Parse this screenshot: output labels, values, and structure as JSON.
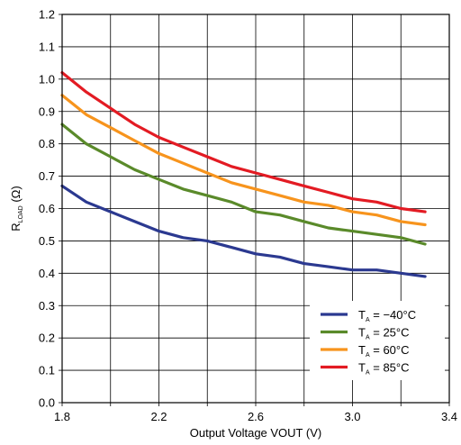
{
  "chart_data": {
    "type": "line",
    "xlabel": "Output Voltage VOUT (V)",
    "ylabel_main": "R",
    "ylabel_sub": "LOAD",
    "ylabel_unit": " (Ω)",
    "xlim": [
      1.8,
      3.4
    ],
    "ylim": [
      0.0,
      1.2
    ],
    "x_ticks": [
      "1.8",
      "2.2",
      "2.6",
      "3.0",
      "3.4"
    ],
    "y_ticks": [
      "0.0",
      "0.1",
      "0.2",
      "0.3",
      "0.4",
      "0.5",
      "0.6",
      "0.7",
      "0.8",
      "0.9",
      "1.0",
      "1.1",
      "1.2"
    ],
    "grid": true,
    "legend_position": "bottom-right",
    "x": [
      1.8,
      1.9,
      2.0,
      2.1,
      2.2,
      2.3,
      2.4,
      2.5,
      2.6,
      2.7,
      2.8,
      2.9,
      3.0,
      3.1,
      3.2,
      3.3
    ],
    "series": [
      {
        "name_main": "T",
        "name_sub": "A",
        "name_rest": " = −40°C",
        "color": "#2b3990",
        "values": [
          0.67,
          0.62,
          0.59,
          0.56,
          0.53,
          0.51,
          0.5,
          0.48,
          0.46,
          0.45,
          0.43,
          0.42,
          0.41,
          0.41,
          0.4,
          0.39
        ]
      },
      {
        "name_main": "T",
        "name_sub": "A",
        "name_rest": " =  25°C",
        "color": "#5a8a2a",
        "values": [
          0.86,
          0.8,
          0.76,
          0.72,
          0.69,
          0.66,
          0.64,
          0.62,
          0.59,
          0.58,
          0.56,
          0.54,
          0.53,
          0.52,
          0.51,
          0.49
        ]
      },
      {
        "name_main": "T",
        "name_sub": "A",
        "name_rest": " =  60°C",
        "color": "#f7941d",
        "values": [
          0.95,
          0.89,
          0.85,
          0.81,
          0.77,
          0.74,
          0.71,
          0.68,
          0.66,
          0.64,
          0.62,
          0.61,
          0.59,
          0.58,
          0.56,
          0.55
        ]
      },
      {
        "name_main": "T",
        "name_sub": "A",
        "name_rest": " =  85°C",
        "color": "#e31b23",
        "values": [
          1.02,
          0.96,
          0.91,
          0.86,
          0.82,
          0.79,
          0.76,
          0.73,
          0.71,
          0.69,
          0.67,
          0.65,
          0.63,
          0.62,
          0.6,
          0.59
        ]
      }
    ]
  }
}
